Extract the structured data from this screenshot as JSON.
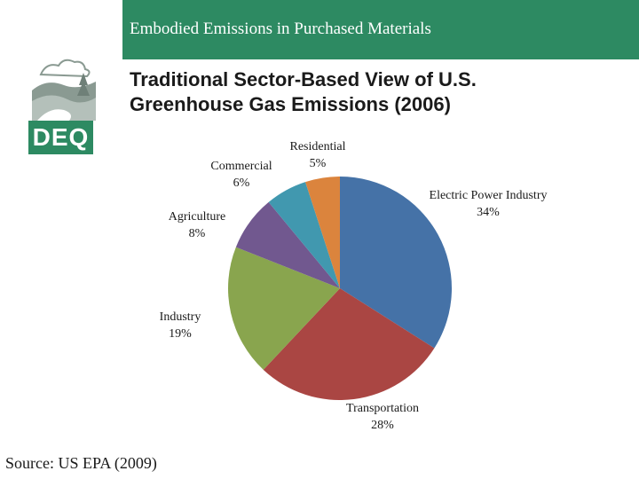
{
  "header": {
    "title": "Embodied Emissions in Purchased Materials"
  },
  "logo": {
    "text": "DEQ"
  },
  "slide": {
    "title_line1": "Traditional Sector-Based View of U.S.",
    "title_line2": "Greenhouse Gas Emissions (2006)"
  },
  "chart_data": {
    "type": "pie",
    "title": "Traditional Sector-Based View of U.S. Greenhouse Gas Emissions (2006)",
    "categories": [
      "Electric Power Industry",
      "Transportation",
      "Industry",
      "Agriculture",
      "Commercial",
      "Residential"
    ],
    "values": [
      34,
      28,
      19,
      8,
      6,
      5
    ],
    "value_labels": [
      "34%",
      "28%",
      "19%",
      "8%",
      "6%",
      "5%"
    ],
    "colors": [
      "#4572a7",
      "#aa4643",
      "#89a54e",
      "#71588f",
      "#4198af",
      "#db843d"
    ],
    "start_angle_deg": 0,
    "direction": "clockwise"
  },
  "footer": {
    "source": "Source: US EPA (2009)"
  }
}
